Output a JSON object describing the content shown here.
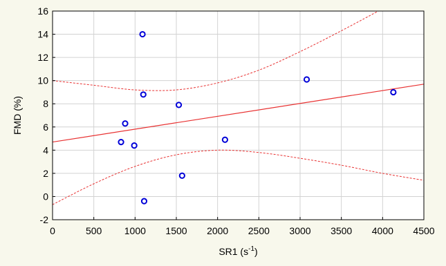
{
  "chart_data": {
    "type": "scatter",
    "title": "",
    "xlabel": "SR1 (s",
    "xlabel_sup": "-1",
    "xlabel_close": ")",
    "ylabel": "FMD (%)",
    "xlim": [
      0,
      4500
    ],
    "ylim": [
      -2,
      16
    ],
    "x_ticks": [
      0,
      500,
      1000,
      1500,
      2000,
      2500,
      3000,
      3500,
      4000,
      4500
    ],
    "y_ticks": [
      -2,
      0,
      2,
      4,
      6,
      8,
      10,
      12,
      14,
      16
    ],
    "grid": true,
    "points": [
      {
        "x": 830,
        "y": 4.7
      },
      {
        "x": 880,
        "y": 6.3
      },
      {
        "x": 990,
        "y": 4.4
      },
      {
        "x": 1090,
        "y": 14.0
      },
      {
        "x": 1100,
        "y": 8.8
      },
      {
        "x": 1110,
        "y": -0.4
      },
      {
        "x": 1530,
        "y": 7.9
      },
      {
        "x": 1570,
        "y": 1.8
      },
      {
        "x": 2090,
        "y": 4.9
      },
      {
        "x": 3080,
        "y": 10.1
      },
      {
        "x": 4130,
        "y": 9.0
      }
    ],
    "fit_line": {
      "intercept": 4.7,
      "slope": 0.00111
    },
    "confidence_band": {
      "upper": [
        {
          "x": 0,
          "y": 10.0
        },
        {
          "x": 500,
          "y": 9.6
        },
        {
          "x": 1000,
          "y": 9.2
        },
        {
          "x": 1500,
          "y": 9.2
        },
        {
          "x": 2000,
          "y": 9.8
        },
        {
          "x": 2500,
          "y": 10.9
        },
        {
          "x": 3000,
          "y": 12.5
        },
        {
          "x": 3500,
          "y": 14.3
        },
        {
          "x": 4000,
          "y": 16.2
        }
      ],
      "lower": [
        {
          "x": 0,
          "y": -0.7
        },
        {
          "x": 500,
          "y": 1.1
        },
        {
          "x": 1000,
          "y": 2.6
        },
        {
          "x": 1500,
          "y": 3.6
        },
        {
          "x": 2000,
          "y": 4.0
        },
        {
          "x": 2500,
          "y": 3.8
        },
        {
          "x": 3000,
          "y": 3.3
        },
        {
          "x": 3500,
          "y": 2.7
        },
        {
          "x": 4000,
          "y": 2.0
        },
        {
          "x": 4500,
          "y": 1.4
        }
      ]
    },
    "colors": {
      "background": "#f8f8ec",
      "plot_background": "#ffffff",
      "grid": "#d2d2d2",
      "points": "#0000d8",
      "fit_line": "#e83030",
      "band": "#e83030"
    }
  }
}
